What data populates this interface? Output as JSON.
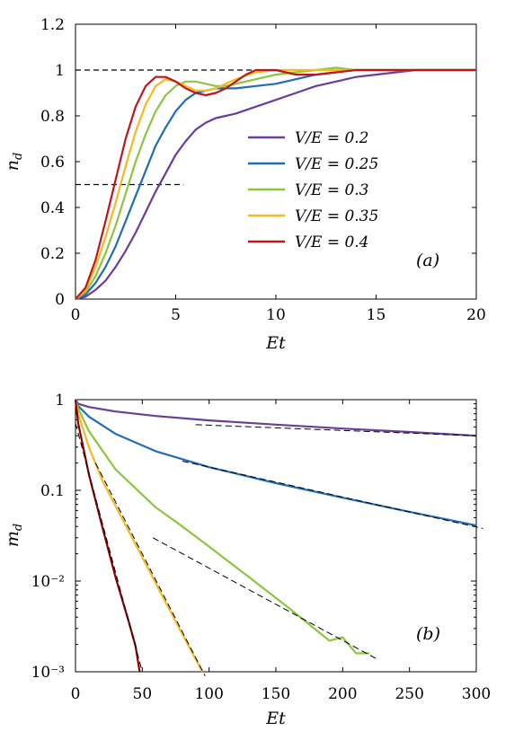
{
  "chart_data": [
    {
      "type": "line",
      "panel_label": "(a)",
      "xlabel": "Et",
      "ylabel": "n_d",
      "xlim": [
        0,
        20
      ],
      "ylim": [
        0,
        1.2
      ],
      "xticks": [
        "0",
        "5",
        "10",
        "15",
        "20"
      ],
      "yticks": [
        "0",
        "0.2",
        "0.4",
        "0.6",
        "0.8",
        "1",
        "1.2"
      ],
      "reference_lines": [
        {
          "y": 1.0,
          "x_range": [
            0,
            20
          ],
          "style": "dashed"
        },
        {
          "y": 0.5,
          "x_range": [
            0,
            5.4
          ],
          "style": "dashed"
        }
      ],
      "legend_position": "center-right",
      "series": [
        {
          "name": "V/E = 0.2",
          "color": "#6a3d9a",
          "x": [
            0,
            0.5,
            1,
            1.5,
            2,
            2.5,
            3,
            3.5,
            4,
            4.5,
            5,
            5.5,
            6,
            6.5,
            7,
            7.5,
            8,
            9,
            10,
            11,
            12,
            13,
            14,
            15,
            16,
            17,
            18,
            19,
            20
          ],
          "y": [
            0,
            0.01,
            0.04,
            0.08,
            0.14,
            0.21,
            0.29,
            0.38,
            0.47,
            0.55,
            0.63,
            0.69,
            0.74,
            0.77,
            0.79,
            0.8,
            0.81,
            0.84,
            0.87,
            0.9,
            0.93,
            0.95,
            0.97,
            0.98,
            0.99,
            1.0,
            1.0,
            1.0,
            1.0
          ]
        },
        {
          "name": "V/E = 0.25",
          "color": "#1f6db5",
          "x": [
            0,
            0.5,
            1,
            1.5,
            2,
            2.5,
            3,
            3.5,
            4,
            4.5,
            5,
            5.5,
            6,
            6.5,
            7,
            7.5,
            8,
            9,
            10,
            11,
            12,
            13,
            14,
            15,
            16,
            17,
            18,
            19,
            20
          ],
          "y": [
            0,
            0.02,
            0.07,
            0.14,
            0.23,
            0.34,
            0.45,
            0.56,
            0.67,
            0.75,
            0.82,
            0.87,
            0.9,
            0.91,
            0.92,
            0.92,
            0.92,
            0.93,
            0.94,
            0.96,
            0.98,
            0.99,
            1.0,
            1.0,
            1.0,
            1.0,
            1.0,
            1.0,
            1.0
          ]
        },
        {
          "name": "V/E = 0.3",
          "color": "#8cc63f",
          "x": [
            0,
            0.5,
            1,
            1.5,
            2,
            2.5,
            3,
            3.5,
            4,
            4.5,
            5,
            5.5,
            6,
            6.5,
            7,
            7.5,
            8,
            9,
            10,
            11,
            12,
            13,
            14,
            15,
            16,
            17,
            18,
            19,
            20
          ],
          "y": [
            0,
            0.03,
            0.1,
            0.2,
            0.32,
            0.46,
            0.6,
            0.72,
            0.82,
            0.89,
            0.93,
            0.95,
            0.95,
            0.94,
            0.93,
            0.93,
            0.94,
            0.96,
            0.98,
            0.99,
            1.0,
            1.01,
            1.0,
            1.0,
            1.0,
            1.0,
            1.0,
            1.0,
            1.0
          ]
        },
        {
          "name": "V/E = 0.35",
          "color": "#f6b91f",
          "x": [
            0,
            0.5,
            1,
            1.5,
            2,
            2.5,
            3,
            3.5,
            4,
            4.5,
            5,
            5.5,
            6,
            6.5,
            7,
            7.5,
            8,
            9,
            10,
            11,
            12,
            13,
            14,
            15,
            16,
            17,
            18,
            19,
            20
          ],
          "y": [
            0,
            0.04,
            0.14,
            0.27,
            0.42,
            0.58,
            0.73,
            0.85,
            0.93,
            0.96,
            0.95,
            0.93,
            0.91,
            0.91,
            0.92,
            0.94,
            0.96,
            0.99,
            1.0,
            1.0,
            1.0,
            1.0,
            1.0,
            1.0,
            1.0,
            1.0,
            1.0,
            1.0,
            1.0
          ]
        },
        {
          "name": "V/E = 0.4",
          "color": "#c0151c",
          "x": [
            0,
            0.5,
            1,
            1.5,
            2,
            2.5,
            3,
            3.5,
            4,
            4.5,
            5,
            5.5,
            6,
            6.5,
            7,
            7.5,
            8,
            8.5,
            9,
            9.5,
            10,
            10.5,
            11,
            12,
            13,
            14,
            15,
            16,
            17,
            18,
            19,
            20
          ],
          "y": [
            0,
            0.05,
            0.17,
            0.34,
            0.52,
            0.7,
            0.84,
            0.93,
            0.97,
            0.97,
            0.95,
            0.92,
            0.9,
            0.89,
            0.9,
            0.92,
            0.95,
            0.98,
            1.0,
            1.0,
            1.0,
            0.99,
            0.98,
            0.98,
            0.99,
            1.0,
            1.0,
            1.0,
            1.0,
            1.0,
            1.0,
            1.0
          ]
        }
      ]
    },
    {
      "type": "line",
      "panel_label": "(b)",
      "xlabel": "Et",
      "ylabel": "m_d",
      "xscale": "linear",
      "yscale": "log",
      "xlim": [
        0,
        300
      ],
      "ylim": [
        0.001,
        1
      ],
      "xticks": [
        "0",
        "50",
        "100",
        "150",
        "200",
        "250",
        "300"
      ],
      "yticks": [
        "10⁻³",
        "10⁻²",
        "0.1",
        "1"
      ],
      "series": [
        {
          "name": "V/E = 0.2",
          "color": "#6a3d9a",
          "x": [
            0,
            2,
            10,
            30,
            60,
            100,
            150,
            200,
            250,
            300
          ],
          "y": [
            1.0,
            0.9,
            0.83,
            0.74,
            0.66,
            0.59,
            0.53,
            0.48,
            0.44,
            0.4
          ]
        },
        {
          "name": "V/E = 0.25",
          "color": "#1f6db5",
          "x": [
            0,
            2,
            10,
            30,
            60,
            100,
            150,
            200,
            250,
            300
          ],
          "y": [
            1.0,
            0.85,
            0.65,
            0.42,
            0.27,
            0.18,
            0.12,
            0.083,
            0.058,
            0.041
          ]
        },
        {
          "name": "V/E = 0.3",
          "color": "#8cc63f",
          "x": [
            0,
            2,
            10,
            30,
            60,
            80,
            100,
            130,
            160,
            190,
            200,
            210,
            220
          ],
          "y": [
            1.0,
            0.8,
            0.45,
            0.17,
            0.065,
            0.04,
            0.024,
            0.011,
            0.005,
            0.0022,
            0.0024,
            0.0016,
            0.0016
          ]
        },
        {
          "name": "V/E = 0.35",
          "color": "#f6b91f",
          "x": [
            0,
            2,
            10,
            20,
            40,
            60,
            80,
            95
          ],
          "y": [
            1.0,
            0.7,
            0.3,
            0.13,
            0.035,
            0.0095,
            0.0026,
            0.001
          ]
        },
        {
          "name": "V/E = 0.4",
          "color": "#8b0000",
          "x": [
            0,
            2,
            10,
            20,
            30,
            40,
            45,
            48
          ],
          "y": [
            1.0,
            0.55,
            0.15,
            0.04,
            0.011,
            0.0035,
            0.0019,
            0.001
          ]
        }
      ],
      "fits": [
        {
          "x": [
            90,
            300
          ],
          "y": [
            0.53,
            0.4
          ]
        },
        {
          "x": [
            80,
            305
          ],
          "y": [
            0.21,
            0.038
          ]
        },
        {
          "x": [
            58,
            225
          ],
          "y": [
            0.03,
            0.0014
          ]
        },
        {
          "x": [
            15,
            97
          ],
          "y": [
            0.2,
            0.0009
          ]
        },
        {
          "x": [
            0,
            50
          ],
          "y": [
            0.55,
            0.001
          ]
        }
      ]
    }
  ]
}
